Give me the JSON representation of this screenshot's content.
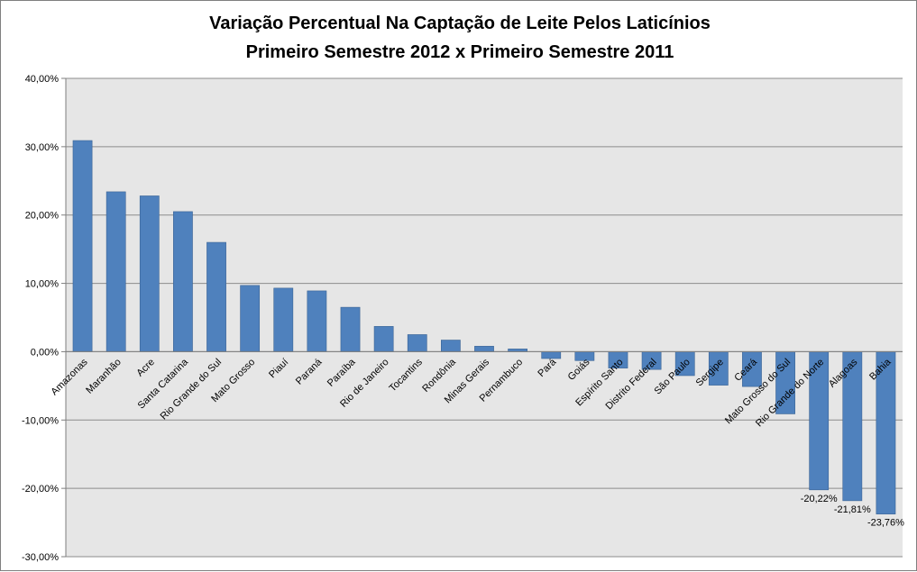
{
  "chart_data": {
    "type": "bar",
    "title": "Variação Percentual Na Captação de Leite Pelos Laticínios",
    "subtitle": "Primeiro Semestre 2012 x Primeiro Semestre 2011",
    "xlabel": "",
    "ylabel": "",
    "ylim": [
      -30,
      40
    ],
    "ytick_values": [
      -30,
      -20,
      -10,
      0,
      10,
      20,
      30,
      40
    ],
    "ytick_labels": [
      "-30,00%",
      "-20,00%",
      "-10,00%",
      "0,00%",
      "10,00%",
      "20,00%",
      "30,00%",
      "40,00%"
    ],
    "grid": true,
    "categories": [
      "Amazonas",
      "Maranhão",
      "Acre",
      "Santa Catarina",
      "Rio Grande do Sul",
      "Mato Grosso",
      "Piauí",
      "Paraná",
      "Paraíba",
      "Rio de Janeiro",
      "Tocantins",
      "Rondônia",
      "Minas Gerais",
      "Pernambuco",
      "Pará",
      "Goiás",
      "Espírito Santo",
      "Distrito Federal",
      "São Paulo",
      "Sergipe",
      "Ceará",
      "Mato Grosso do Sul",
      "Rio Grande do Norte",
      "Alagoas",
      "Bahia"
    ],
    "values": [
      30.9,
      23.4,
      22.8,
      20.5,
      16.0,
      9.7,
      9.3,
      8.9,
      6.5,
      3.7,
      2.5,
      1.7,
      0.8,
      0.4,
      -1.0,
      -1.3,
      -2.4,
      -2.6,
      -3.5,
      -4.9,
      -5.1,
      -9.1,
      -20.22,
      -21.81,
      -23.76
    ],
    "data_labels": [
      {
        "index": 22,
        "text": "-20,22%"
      },
      {
        "index": 23,
        "text": "-21,81%"
      },
      {
        "index": 24,
        "text": "-23,76%"
      }
    ],
    "colors": {
      "bar": "#4f81bd",
      "bar_edge": "#3a6394",
      "plot_bg": "#e6e6e6",
      "grid": "#8c8c8c"
    }
  }
}
